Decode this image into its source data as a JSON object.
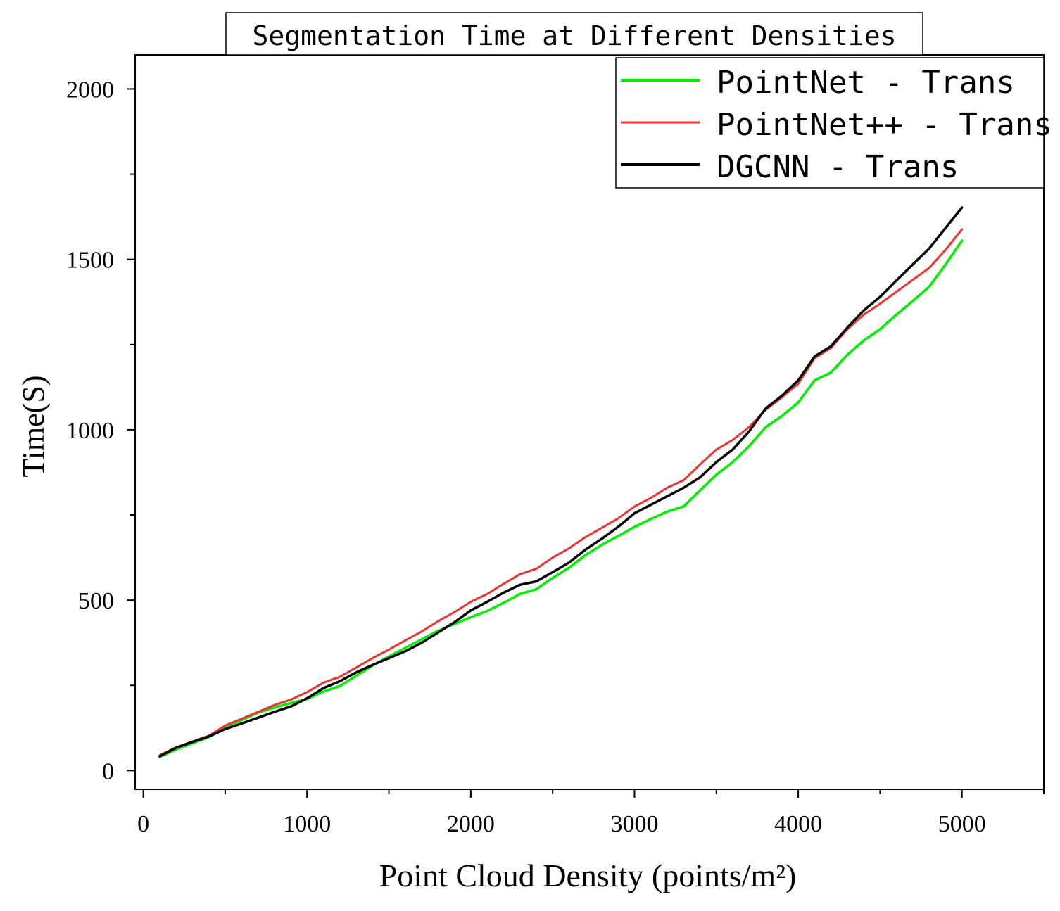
{
  "chart_data": {
    "type": "line",
    "title": "Segmentation Time at Different Densities",
    "xlabel": "Point Cloud Density (points/m²)",
    "ylabel": "Time(S)",
    "xlim": [
      -50,
      5500
    ],
    "ylim": [
      -55,
      2100
    ],
    "xticks": [
      0,
      1000,
      2000,
      3000,
      4000,
      5000
    ],
    "yticks": [
      0,
      500,
      1000,
      1500,
      2000
    ],
    "x": [
      100,
      200,
      300,
      400,
      500,
      600,
      700,
      800,
      900,
      1000,
      1100,
      1200,
      1300,
      1400,
      1500,
      1600,
      1700,
      1800,
      1900,
      2000,
      2100,
      2200,
      2300,
      2400,
      2500,
      2600,
      2700,
      2800,
      2900,
      3000,
      3100,
      3200,
      3300,
      3400,
      3500,
      3600,
      3700,
      3800,
      3900,
      4000,
      4100,
      4200,
      4300,
      4400,
      4500,
      4600,
      4700,
      4800,
      4900,
      5000
    ],
    "series": [
      {
        "name": "PointNet - Trans",
        "color": "#00ee00",
        "values": [
          40,
          62,
          80,
          98,
          125,
          148,
          170,
          185,
          198,
          210,
          232,
          248,
          278,
          308,
          335,
          360,
          385,
          410,
          430,
          450,
          468,
          492,
          518,
          532,
          565,
          595,
          632,
          662,
          688,
          715,
          738,
          760,
          775,
          822,
          868,
          905,
          952,
          1007,
          1040,
          1080,
          1145,
          1168,
          1220,
          1262,
          1295,
          1338,
          1378,
          1420,
          1485,
          1555
        ]
      },
      {
        "name": "PointNet++ - Trans",
        "color": "#ee3333",
        "values": [
          45,
          68,
          85,
          102,
          132,
          152,
          172,
          192,
          208,
          230,
          258,
          275,
          302,
          330,
          355,
          382,
          408,
          438,
          465,
          495,
          518,
          548,
          576,
          592,
          625,
          652,
          685,
          712,
          740,
          775,
          800,
          830,
          852,
          898,
          942,
          970,
          1008,
          1058,
          1095,
          1135,
          1210,
          1240,
          1295,
          1338,
          1370,
          1405,
          1440,
          1475,
          1528,
          1588
        ]
      },
      {
        "name": "DGCNN - Trans",
        "color": "#000000",
        "values": [
          42,
          67,
          84,
          100,
          122,
          138,
          155,
          172,
          188,
          212,
          242,
          262,
          288,
          310,
          330,
          350,
          375,
          405,
          435,
          470,
          495,
          522,
          545,
          555,
          582,
          610,
          648,
          680,
          715,
          755,
          780,
          805,
          830,
          860,
          905,
          942,
          995,
          1062,
          1100,
          1145,
          1215,
          1245,
          1300,
          1350,
          1390,
          1438,
          1485,
          1532,
          1592,
          1652
        ]
      }
    ],
    "legend_position": "top-right"
  }
}
